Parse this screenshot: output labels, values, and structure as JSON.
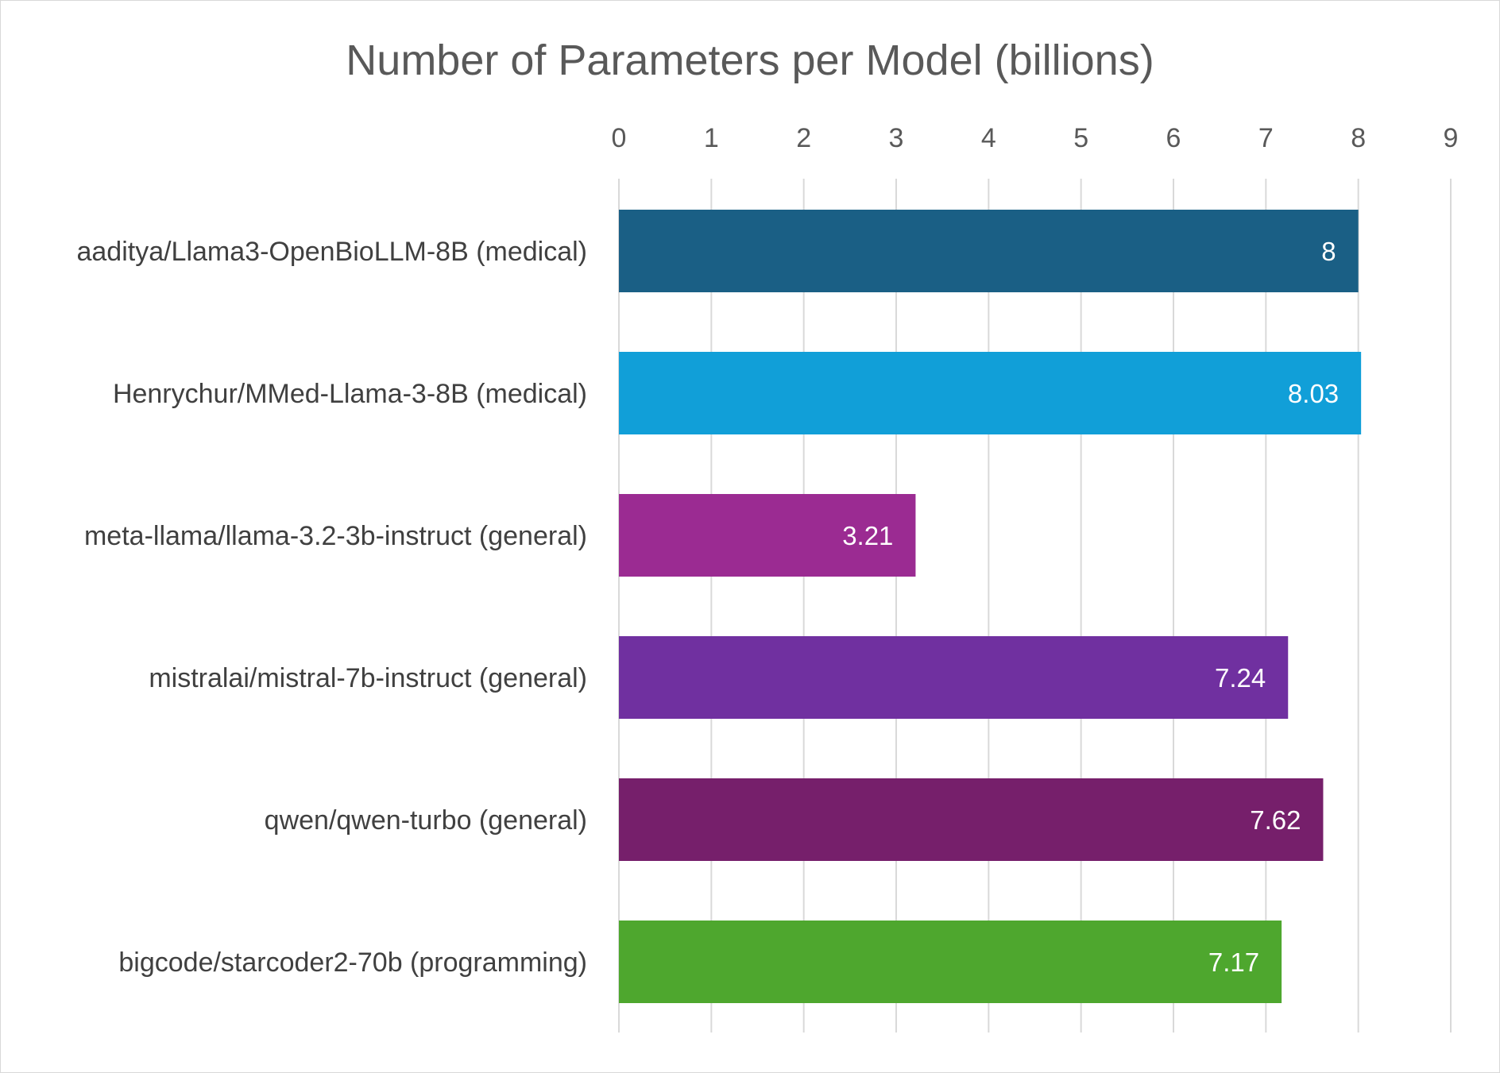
{
  "chart_data": {
    "type": "bar",
    "orientation": "horizontal",
    "title": "Number of Parameters per Model (billions)",
    "xlabel": "",
    "ylabel": "",
    "xlim": [
      0,
      9
    ],
    "ticks": [
      0,
      1,
      2,
      3,
      4,
      5,
      6,
      7,
      8,
      9
    ],
    "grid": true,
    "axis_position": "top",
    "categories": [
      "aaditya/Llama3-OpenBioLLM-8B (medical)",
      "Henrychur/MMed-Llama-3-8B (medical)",
      "meta-llama/llama-3.2-3b-instruct (general)",
      "mistralai/mistral-7b-instruct (general)",
      "qwen/qwen-turbo (general)",
      "bigcode/starcoder2-70b (programming)"
    ],
    "values": [
      8,
      8.03,
      3.21,
      7.24,
      7.62,
      7.17
    ],
    "data_labels": [
      "8",
      "8.03",
      "3.21",
      "7.24",
      "7.62",
      "7.17"
    ],
    "colors": [
      "#1a5f85",
      "#119fd8",
      "#9b2b92",
      "#7030a0",
      "#761f6b",
      "#4ea72e"
    ]
  }
}
